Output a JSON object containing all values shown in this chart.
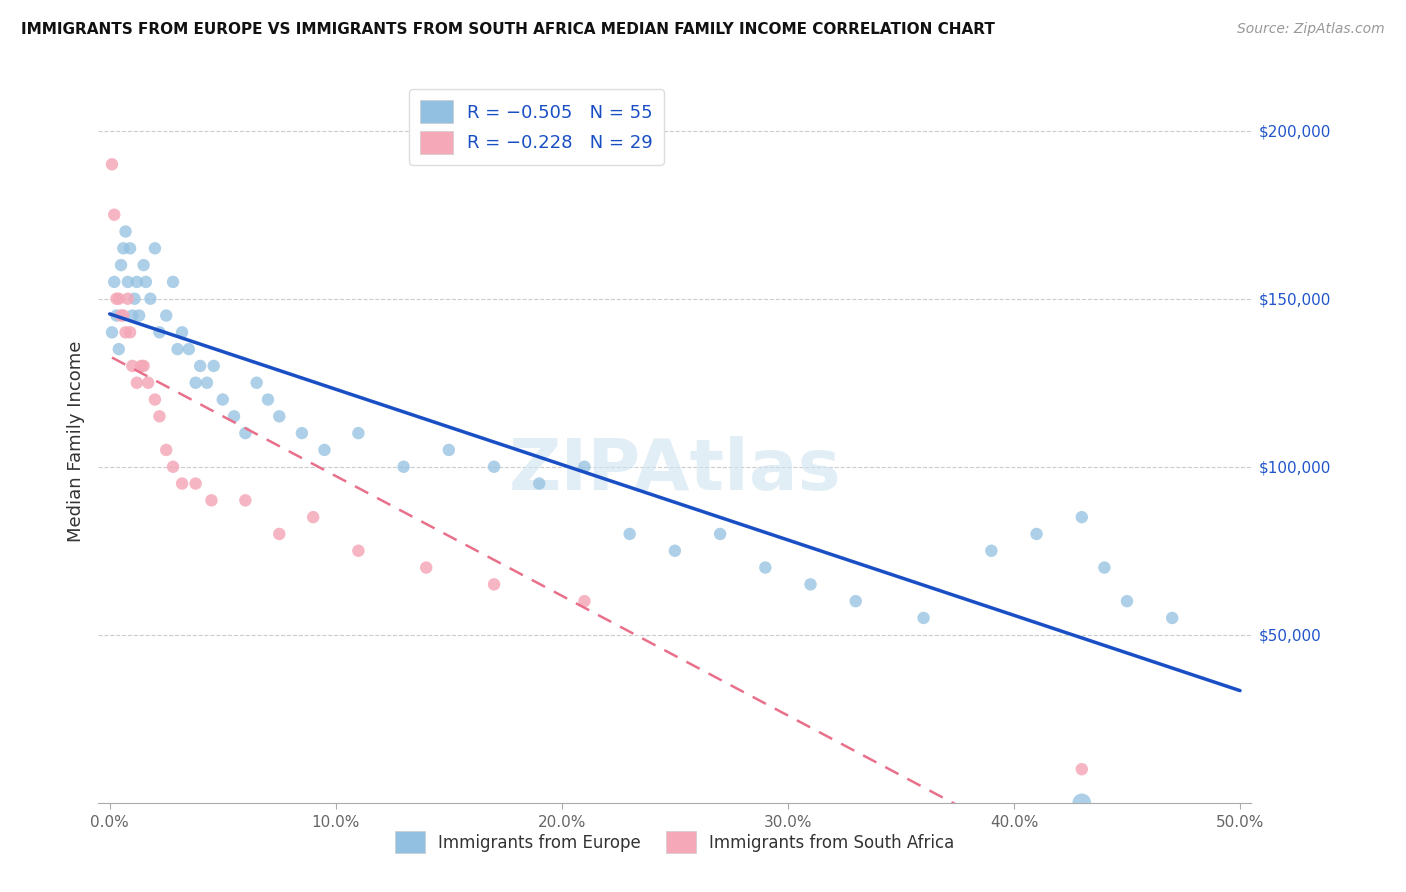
{
  "title": "IMMIGRANTS FROM EUROPE VS IMMIGRANTS FROM SOUTH AFRICA MEDIAN FAMILY INCOME CORRELATION CHART",
  "source": "Source: ZipAtlas.com",
  "ylabel": "Median Family Income",
  "xlabel_ticks": [
    "0.0%",
    "10.0%",
    "20.0%",
    "30.0%",
    "40.0%",
    "50.0%"
  ],
  "xlabel_vals": [
    0.0,
    0.1,
    0.2,
    0.3,
    0.4,
    0.5
  ],
  "ytick_labels": [
    "$50,000",
    "$100,000",
    "$150,000",
    "$200,000"
  ],
  "ytick_vals": [
    50000,
    100000,
    150000,
    200000
  ],
  "ylim": [
    0,
    215000
  ],
  "xlim": [
    -0.005,
    0.505
  ],
  "legend_label1": "Immigrants from Europe",
  "legend_label2": "Immigrants from South Africa",
  "watermark": "ZIPAtlas",
  "blue_color": "#92c0e0",
  "pink_color": "#f4a8b8",
  "line_blue": "#1a4fc4",
  "line_pink": "#e8708a",
  "europe_x": [
    0.001,
    0.002,
    0.003,
    0.004,
    0.005,
    0.006,
    0.007,
    0.008,
    0.009,
    0.01,
    0.011,
    0.012,
    0.013,
    0.015,
    0.016,
    0.018,
    0.02,
    0.022,
    0.025,
    0.028,
    0.03,
    0.032,
    0.035,
    0.038,
    0.04,
    0.043,
    0.046,
    0.05,
    0.055,
    0.06,
    0.065,
    0.07,
    0.075,
    0.085,
    0.095,
    0.11,
    0.13,
    0.15,
    0.17,
    0.19,
    0.21,
    0.23,
    0.25,
    0.27,
    0.29,
    0.31,
    0.33,
    0.36,
    0.39,
    0.41,
    0.43,
    0.44,
    0.45,
    0.47,
    0.43
  ],
  "europe_y": [
    140000,
    155000,
    145000,
    135000,
    160000,
    165000,
    170000,
    155000,
    165000,
    145000,
    150000,
    155000,
    145000,
    160000,
    155000,
    150000,
    165000,
    140000,
    145000,
    155000,
    135000,
    140000,
    135000,
    125000,
    130000,
    125000,
    130000,
    120000,
    115000,
    110000,
    125000,
    120000,
    115000,
    110000,
    105000,
    110000,
    100000,
    105000,
    100000,
    95000,
    100000,
    80000,
    75000,
    80000,
    70000,
    65000,
    60000,
    55000,
    75000,
    80000,
    85000,
    70000,
    60000,
    55000,
    0
  ],
  "europe_sizes": [
    80,
    80,
    80,
    80,
    80,
    80,
    80,
    80,
    80,
    80,
    80,
    80,
    80,
    80,
    80,
    80,
    80,
    80,
    80,
    80,
    80,
    80,
    80,
    80,
    80,
    80,
    80,
    80,
    80,
    80,
    80,
    80,
    80,
    80,
    80,
    80,
    80,
    80,
    80,
    80,
    80,
    80,
    80,
    80,
    80,
    80,
    80,
    80,
    80,
    80,
    80,
    80,
    80,
    80,
    180
  ],
  "sa_x": [
    0.001,
    0.002,
    0.003,
    0.004,
    0.005,
    0.006,
    0.007,
    0.008,
    0.009,
    0.01,
    0.012,
    0.014,
    0.015,
    0.017,
    0.02,
    0.022,
    0.025,
    0.028,
    0.032,
    0.038,
    0.045,
    0.06,
    0.075,
    0.09,
    0.11,
    0.14,
    0.17,
    0.21,
    0.43
  ],
  "sa_y": [
    190000,
    175000,
    150000,
    150000,
    145000,
    145000,
    140000,
    150000,
    140000,
    130000,
    125000,
    130000,
    130000,
    125000,
    120000,
    115000,
    105000,
    100000,
    95000,
    95000,
    90000,
    90000,
    80000,
    85000,
    75000,
    70000,
    65000,
    60000,
    10000
  ],
  "sa_sizes": [
    80,
    80,
    80,
    80,
    80,
    80,
    80,
    80,
    80,
    80,
    80,
    80,
    80,
    80,
    80,
    80,
    80,
    80,
    80,
    80,
    80,
    80,
    80,
    80,
    80,
    80,
    80,
    80,
    80
  ]
}
